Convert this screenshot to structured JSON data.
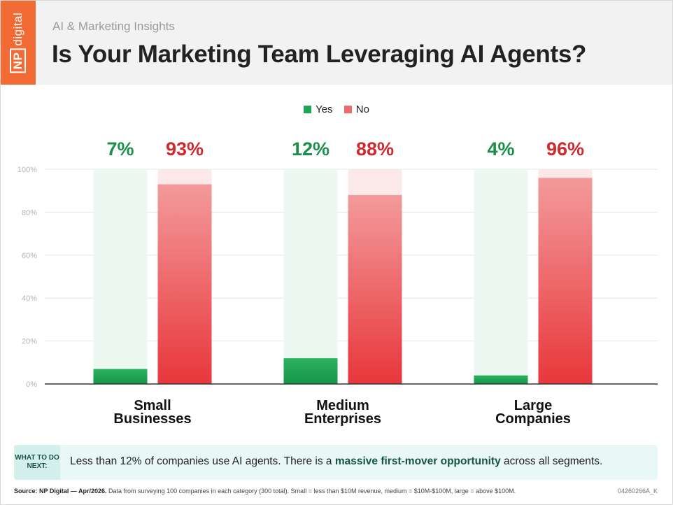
{
  "brand": {
    "logo_np": "NP",
    "logo_word": "digital",
    "color": "#f26a34"
  },
  "header": {
    "subtitle": "AI & Marketing Insights",
    "title": "Is Your Marketing Team Leveraging AI Agents?"
  },
  "chart_data": {
    "type": "bar",
    "categories": [
      "Small Businesses",
      "Medium Enterprises",
      "Large Companies"
    ],
    "category_lines": [
      [
        "Small",
        "Businesses"
      ],
      [
        "Medium",
        "Enterprises"
      ],
      [
        "Large",
        "Companies"
      ]
    ],
    "series": [
      {
        "name": "Yes",
        "values": [
          7,
          12,
          4
        ],
        "color": "#1fa652"
      },
      {
        "name": "No",
        "values": [
          93,
          88,
          96
        ],
        "color": "#e8373a"
      }
    ],
    "ylim": [
      0,
      100
    ],
    "yticks": [
      0,
      20,
      40,
      60,
      80,
      100
    ],
    "ytick_labels": [
      "0%",
      "20%",
      "40%",
      "60%",
      "80%",
      "100%"
    ],
    "value_suffix": "%",
    "legend": "top-center",
    "grid": true
  },
  "callout": {
    "tag": "WHAT TO DO NEXT:",
    "text_before": "Less than 12% of companies use AI agents. There is a ",
    "text_bold": "massive first-mover opportunity",
    "text_after": " across all segments."
  },
  "footer": {
    "source_bold": "Source: NP Digital — Apr/2026.",
    "source_text": " Data from surveying 100 companies in each category (300 total). Small = less than $10M revenue, medium = $10M-$100M, large = above $100M.",
    "code": "04260266A_K"
  }
}
